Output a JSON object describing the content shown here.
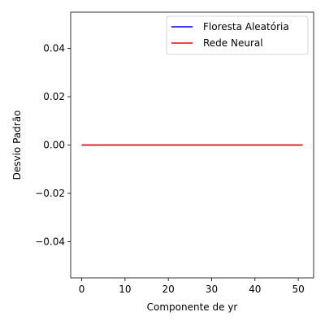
{
  "chart_data": {
    "type": "line",
    "title": "",
    "xlabel": "Componente de yr",
    "ylabel": "Desvio Padrão",
    "xlim": [
      -2.55,
      53.55
    ],
    "ylim": [
      -0.055,
      0.055
    ],
    "xticks": [
      0,
      10,
      20,
      30,
      40,
      50
    ],
    "xtick_labels": [
      "0",
      "10",
      "20",
      "30",
      "40",
      "50"
    ],
    "yticks": [
      -0.04,
      -0.02,
      0.0,
      0.02,
      0.04
    ],
    "ytick_labels": [
      "−0.04",
      "−0.02",
      "0.00",
      "0.02",
      "0.04"
    ],
    "grid": false,
    "legend_position": "top-right",
    "x": [
      0,
      51
    ],
    "series": [
      {
        "name": "Floresta Aleatória",
        "color": "#0000ff",
        "values": [
          0.0,
          0.0
        ]
      },
      {
        "name": "Rede Neural",
        "color": "#ff0000",
        "values": [
          0.0,
          0.0
        ]
      }
    ]
  }
}
